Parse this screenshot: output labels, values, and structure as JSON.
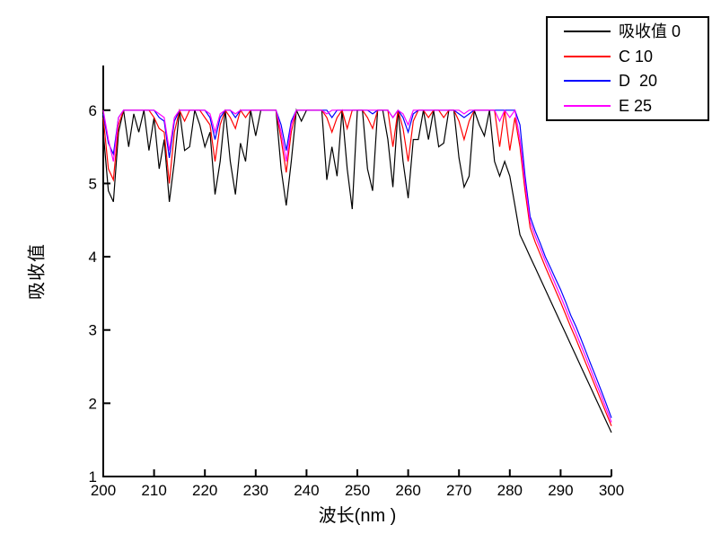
{
  "figure": {
    "background": "#ffffff"
  },
  "legend": {
    "entries": [
      {
        "label": "吸收值 0",
        "color": "#000000"
      },
      {
        "label": "C 10",
        "color": "#ff0000"
      },
      {
        "label": "D  20",
        "color": "#0000ff"
      },
      {
        "label": "E 25",
        "color": "#ff00ff"
      }
    ]
  },
  "chart_data": {
    "type": "line",
    "title": "",
    "xlabel": "波长(nm )",
    "ylabel": "吸收值",
    "xlim": [
      200,
      300
    ],
    "ylim": [
      1,
      6.61
    ],
    "x_ticks": [
      200,
      210,
      220,
      230,
      240,
      250,
      260,
      270,
      280,
      290,
      300
    ],
    "y_ticks": [
      1,
      2,
      3,
      4,
      5,
      6
    ],
    "grid": false,
    "legend_position": "top-right",
    "x_start": 200,
    "x_step": 1,
    "saturation_level": 6,
    "series": [
      {
        "name": "吸收值 0",
        "color": "#000000",
        "values": [
          5.7,
          4.9,
          4.75,
          5.7,
          6,
          5.5,
          5.95,
          5.7,
          6,
          5.45,
          5.9,
          5.2,
          5.6,
          4.75,
          5.3,
          6,
          5.45,
          5.5,
          6,
          5.8,
          5.5,
          5.7,
          4.85,
          5.3,
          6,
          5.3,
          4.85,
          5.55,
          5.3,
          6,
          5.65,
          6,
          6,
          6,
          6,
          5.2,
          4.7,
          5.3,
          6,
          5.85,
          6,
          6,
          6,
          6,
          5.05,
          5.5,
          5.1,
          6,
          5.2,
          4.65,
          6,
          6,
          5.2,
          4.9,
          6,
          6,
          5.6,
          4.95,
          6,
          5.3,
          4.8,
          5.6,
          5.6,
          6,
          5.6,
          6,
          5.5,
          5.55,
          6,
          6,
          5.35,
          4.95,
          5.1,
          6,
          5.8,
          5.65,
          6,
          5.3,
          5.1,
          5.3,
          5.1,
          4.7,
          4.3,
          4.15,
          4,
          3.85,
          3.7,
          3.55,
          3.4,
          3.25,
          3.1,
          2.95,
          2.8,
          2.65,
          2.5,
          2.35,
          2.2,
          2.05,
          1.9,
          1.75,
          1.6
        ]
      },
      {
        "name": "C 10",
        "color": "#ff0000",
        "values": [
          5.9,
          5.2,
          5.05,
          5.8,
          6,
          6,
          6,
          6,
          6,
          6,
          5.9,
          5.75,
          5.7,
          5,
          5.7,
          6,
          5.85,
          6,
          6,
          6,
          5.9,
          5.8,
          5.3,
          5.8,
          6,
          5.9,
          5.75,
          6,
          5.9,
          6,
          6,
          6,
          6,
          6,
          6,
          5.6,
          5.15,
          5.7,
          6,
          6,
          6,
          6,
          6,
          6,
          5.9,
          5.7,
          5.9,
          6,
          5.75,
          6,
          6,
          6,
          5.9,
          5.75,
          6,
          6,
          6,
          5.5,
          6,
          5.75,
          5.3,
          5.85,
          6,
          6,
          5.9,
          6,
          6,
          5.9,
          6,
          6,
          5.85,
          5.6,
          5.85,
          6,
          6,
          6,
          6,
          6,
          5.5,
          6,
          5.45,
          5.9,
          5.5,
          4.9,
          4.4,
          4.2,
          4.03,
          3.86,
          3.7,
          3.54,
          3.38,
          3.21,
          3.04,
          2.88,
          2.71,
          2.54,
          2.37,
          2.2,
          2.03,
          1.86,
          1.69
        ]
      },
      {
        "name": "D  20",
        "color": "#0000ff",
        "values": [
          5.95,
          5.55,
          5.4,
          5.9,
          6,
          6,
          6,
          6,
          6,
          6,
          6,
          5.9,
          5.85,
          5.35,
          5.85,
          6,
          6,
          6,
          6,
          6,
          6,
          5.9,
          5.6,
          5.9,
          6,
          6,
          5.9,
          6,
          6,
          6,
          6,
          6,
          6,
          6,
          6,
          5.8,
          5.45,
          5.85,
          6,
          6,
          6,
          6,
          6,
          6,
          6,
          5.9,
          6,
          6,
          6,
          6,
          6,
          6,
          6,
          5.95,
          6,
          6,
          6,
          5.9,
          6,
          5.9,
          5.7,
          5.95,
          6,
          6,
          6,
          6,
          6,
          6,
          6,
          6,
          5.95,
          5.9,
          5.95,
          6,
          6,
          6,
          6,
          6,
          6,
          6,
          6,
          6,
          5.8,
          5.1,
          4.55,
          4.35,
          4.18,
          4,
          3.85,
          3.7,
          3.55,
          3.38,
          3.2,
          3.05,
          2.88,
          2.7,
          2.52,
          2.35,
          2.17,
          1.99,
          1.8
        ]
      },
      {
        "name": "E 25",
        "color": "#ff00ff",
        "values": [
          6,
          5.6,
          5.3,
          5.9,
          6,
          6,
          6,
          6,
          6,
          6,
          6,
          5.95,
          5.9,
          5.45,
          5.9,
          6,
          6,
          6,
          6,
          6,
          6,
          5.95,
          5.7,
          5.95,
          6,
          6,
          5.95,
          6,
          6,
          6,
          6,
          6,
          6,
          6,
          6,
          5.7,
          5.3,
          5.8,
          6,
          6,
          6,
          6,
          6,
          6,
          5.95,
          6,
          6,
          6,
          6,
          6,
          6,
          6,
          6,
          6,
          6,
          6,
          6,
          5.9,
          6,
          5.95,
          5.8,
          6,
          6,
          6,
          6,
          6,
          6,
          6,
          6,
          6,
          6,
          5.95,
          6,
          6,
          6,
          6,
          6,
          6,
          5.85,
          6,
          5.9,
          6,
          5.6,
          5,
          4.48,
          4.28,
          4.11,
          3.94,
          3.78,
          3.62,
          3.46,
          3.29,
          3.12,
          2.96,
          2.79,
          2.62,
          2.44,
          2.27,
          2.1,
          1.92,
          1.74
        ]
      }
    ]
  }
}
